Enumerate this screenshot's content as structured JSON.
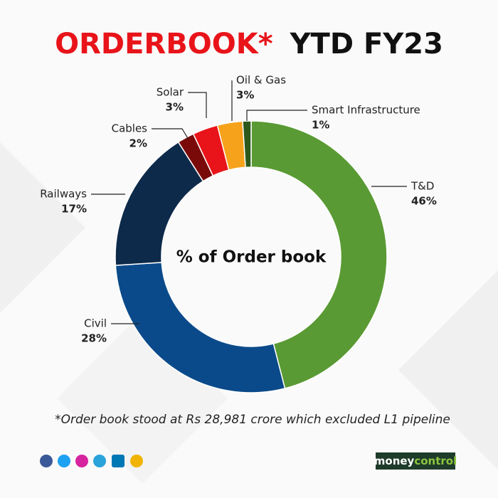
{
  "chart_data": {
    "type": "donut",
    "title_highlight": "ORDERBOOK*",
    "title_rest": "YTD FY23",
    "center_label": "% of Order book",
    "categories": [
      "T&D",
      "Civil",
      "Railways",
      "Cables",
      "Solar",
      "Oil & Gas",
      "Smart Infrastructure"
    ],
    "values": [
      46,
      28,
      17,
      2,
      3,
      3,
      1
    ],
    "value_labels": [
      "46%",
      "28%",
      "17%",
      "2%",
      "3%",
      "3%",
      "1%"
    ],
    "colors": [
      "#5a9a34",
      "#0b4a8a",
      "#0d2a4a",
      "#7a0a0a",
      "#e8141a",
      "#f7a21b",
      "#2d5a1c"
    ],
    "footnote": "*Order book stood at Rs 28,981 crore which excluded L1 pipeline",
    "brand": [
      "money",
      "control"
    ]
  }
}
